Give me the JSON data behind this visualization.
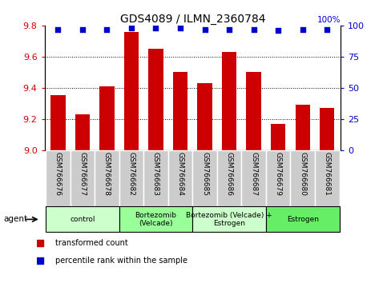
{
  "title": "GDS4089 / ILMN_2360784",
  "samples": [
    "GSM766676",
    "GSM766677",
    "GSM766678",
    "GSM766682",
    "GSM766683",
    "GSM766684",
    "GSM766685",
    "GSM766686",
    "GSM766687",
    "GSM766679",
    "GSM766680",
    "GSM766681"
  ],
  "red_values": [
    9.35,
    9.23,
    9.41,
    9.76,
    9.65,
    9.5,
    9.43,
    9.63,
    9.5,
    9.17,
    9.29,
    9.27
  ],
  "blue_values": [
    97,
    97,
    97,
    98,
    98,
    98,
    97,
    97,
    97,
    96,
    97,
    97
  ],
  "ylim_left": [
    9.0,
    9.8
  ],
  "ylim_right": [
    0,
    100
  ],
  "yticks_left": [
    9.0,
    9.2,
    9.4,
    9.6,
    9.8
  ],
  "yticks_right": [
    0,
    25,
    50,
    75,
    100
  ],
  "groups": [
    {
      "label": "control",
      "start": 0,
      "end": 3,
      "color": "#ccffcc"
    },
    {
      "label": "Bortezomib\n(Velcade)",
      "start": 3,
      "end": 6,
      "color": "#99ff99"
    },
    {
      "label": "Bortezomib (Velcade) +\nEstrogen",
      "start": 6,
      "end": 9,
      "color": "#ccffcc"
    },
    {
      "label": "Estrogen",
      "start": 9,
      "end": 12,
      "color": "#66ee66"
    }
  ],
  "agent_label": "agent",
  "bar_color": "#cc0000",
  "blue_dot_color": "#0000cc",
  "left_tick_color": "#cc0000",
  "right_tick_color": "#0000cc",
  "base_value": 9.0,
  "grid_lines": [
    9.2,
    9.4,
    9.6
  ],
  "label_bg_color": "#cccccc",
  "label_bg_edge": "#ffffff"
}
